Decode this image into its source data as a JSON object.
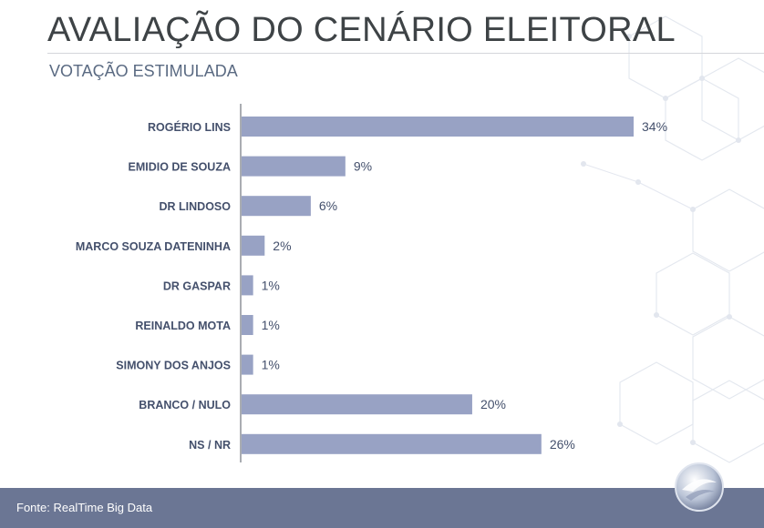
{
  "header": {
    "title": "AVALIAÇÃO DO CENÁRIO ELEITORAL",
    "subtitle": "VOTAÇÃO ESTIMULADA"
  },
  "footer": {
    "source": "Fonte: RealTime Big Data"
  },
  "colors": {
    "bar": "#98a2c4",
    "label": "#44506c",
    "footer": "#6b7694"
  },
  "chart_data": {
    "type": "bar",
    "orientation": "horizontal",
    "categories": [
      "ROGÉRIO LINS",
      "EMIDIO DE SOUZA",
      "DR LINDOSO",
      "MARCO SOUZA DATENINHA",
      "DR GASPAR",
      "REINALDO MOTA",
      "SIMONY DOS ANJOS",
      "BRANCO / NULO",
      "NS / NR"
    ],
    "values": [
      34,
      9,
      6,
      2,
      1,
      1,
      1,
      20,
      26
    ],
    "value_labels": [
      "34%",
      "9%",
      "6%",
      "2%",
      "1%",
      "1%",
      "1%",
      "20%",
      "26%"
    ],
    "unit": "%",
    "xlim": [
      0,
      34
    ],
    "grid": false
  }
}
